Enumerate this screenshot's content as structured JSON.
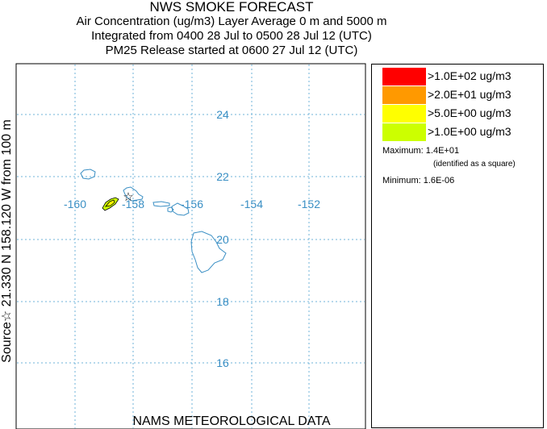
{
  "header": {
    "title": "NWS SMOKE FORECAST",
    "line2": "Air Concentration (ug/m3) Layer Average    0 m and  5000 m",
    "line3": "Integrated from 0400 28 Jul to 0500 28 Jul 12 (UTC)",
    "line4": "PM25 Release started at 0600 27 Jul 12 (UTC)"
  },
  "source_label": "Source☆ 21.330  N 158.120  W     from   100 m",
  "footer": "NAMS METEOROLOGICAL DATA",
  "map": {
    "lon_labels": [
      "-160",
      "-158",
      "-156",
      "-154",
      "-152"
    ],
    "lat_labels": [
      "24",
      "22",
      "20",
      "18",
      "16"
    ],
    "grid_color": "#6fb3d9",
    "coast_color": "#3a8fc4",
    "label_color": "#3a8fc4",
    "source_marker": "star-icon"
  },
  "legend": {
    "entries": [
      {
        "label": ">1.0E+02 ug/m3",
        "color": "#ff0000"
      },
      {
        "label": ">2.0E+01 ug/m3",
        "color": "#ff9900"
      },
      {
        "label": ">5.0E+00 ug/m3",
        "color": "#ffff00"
      },
      {
        "label": ">1.0E+00 ug/m3",
        "color": "#ccff00"
      }
    ],
    "maximum": "Maximum: 1.4E+01",
    "maximum_note": "(identified as a square)",
    "minimum": "Minimum: 1.6E-06"
  }
}
